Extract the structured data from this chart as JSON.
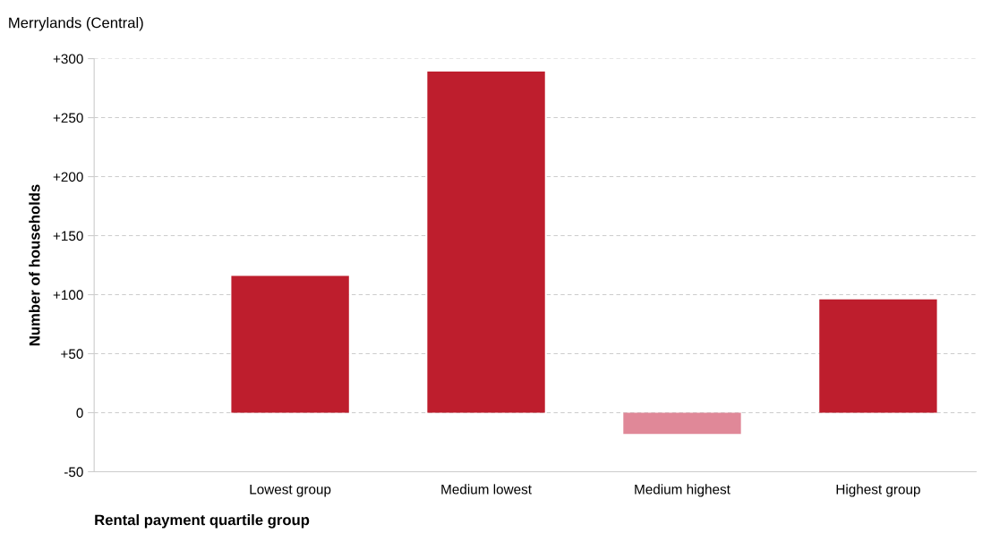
{
  "chart_data": {
    "type": "bar",
    "title": "Merrylands (Central)",
    "xlabel": "Rental payment quartile group",
    "ylabel": "Number of households",
    "categories": [
      "Lowest group",
      "Medium lowest",
      "Medium highest",
      "Highest group"
    ],
    "values": [
      116,
      289,
      -18,
      96
    ],
    "colors": [
      "#be1e2d",
      "#be1e2d",
      "#e08898",
      "#be1e2d"
    ],
    "ylim": [
      -50,
      300
    ],
    "yticks": [
      {
        "value": -50,
        "label": "-50"
      },
      0,
      {
        "value": 50,
        "label": "+50"
      },
      {
        "value": 100,
        "label": "+100"
      },
      {
        "value": 150,
        "label": "+150"
      },
      {
        "value": 200,
        "label": "+200"
      },
      {
        "value": 250,
        "label": "+250"
      },
      {
        "value": 300,
        "label": "+300"
      }
    ],
    "grid": "y"
  }
}
